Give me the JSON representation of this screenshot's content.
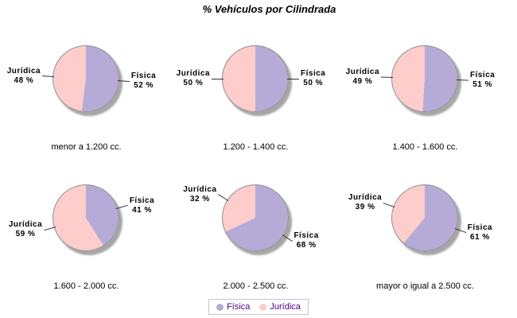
{
  "title": "% Vehículos por Cilindrada",
  "colors": {
    "fisica": "#b6abd7",
    "juridica": "#fccdca",
    "pie_border": "#909090",
    "shadow": "#a6a6a6",
    "callout_line": "#333333",
    "legend_text": "#4b0082",
    "legend_border": "#c6c6d2"
  },
  "legend": {
    "position": "bottom",
    "items": [
      {
        "name": "Física",
        "color": "#b6abd7"
      },
      {
        "name": "Jurídica",
        "color": "#fccdca"
      }
    ]
  },
  "chart_data": [
    {
      "type": "pie",
      "title": "menor a 1.200 cc.",
      "slices": [
        {
          "name": "Física",
          "pct": 52,
          "label": "52 %",
          "color": "#b6abd7"
        },
        {
          "name": "Jurídica",
          "pct": 48,
          "label": "48 %",
          "color": "#fccdca"
        }
      ]
    },
    {
      "type": "pie",
      "title": "1.200 - 1.400 cc.",
      "slices": [
        {
          "name": "Física",
          "pct": 50,
          "label": "50 %",
          "color": "#b6abd7"
        },
        {
          "name": "Jurídica",
          "pct": 50,
          "label": "50 %",
          "color": "#fccdca"
        }
      ]
    },
    {
      "type": "pie",
      "title": "1.400 - 1.600 cc.",
      "slices": [
        {
          "name": "Física",
          "pct": 51,
          "label": "51 %",
          "color": "#b6abd7"
        },
        {
          "name": "Jurídica",
          "pct": 49,
          "label": "49 %",
          "color": "#fccdca"
        }
      ]
    },
    {
      "type": "pie",
      "title": "1.600 - 2.000 cc.",
      "slices": [
        {
          "name": "Física",
          "pct": 41,
          "label": "41 %",
          "color": "#b6abd7"
        },
        {
          "name": "Jurídica",
          "pct": 59,
          "label": "59 %",
          "color": "#fccdca"
        }
      ]
    },
    {
      "type": "pie",
      "title": "2.000 - 2.500 cc.",
      "slices": [
        {
          "name": "Física",
          "pct": 68,
          "label": "68 %",
          "color": "#b6abd7"
        },
        {
          "name": "Jurídica",
          "pct": 32,
          "label": "32 %",
          "color": "#fccdca"
        }
      ]
    },
    {
      "type": "pie",
      "title": "mayor o igual a 2.500 cc.",
      "slices": [
        {
          "name": "Física",
          "pct": 61,
          "label": "61 %",
          "color": "#b6abd7"
        },
        {
          "name": "Jurídica",
          "pct": 39,
          "label": "39 %",
          "color": "#fccdca"
        }
      ]
    }
  ]
}
